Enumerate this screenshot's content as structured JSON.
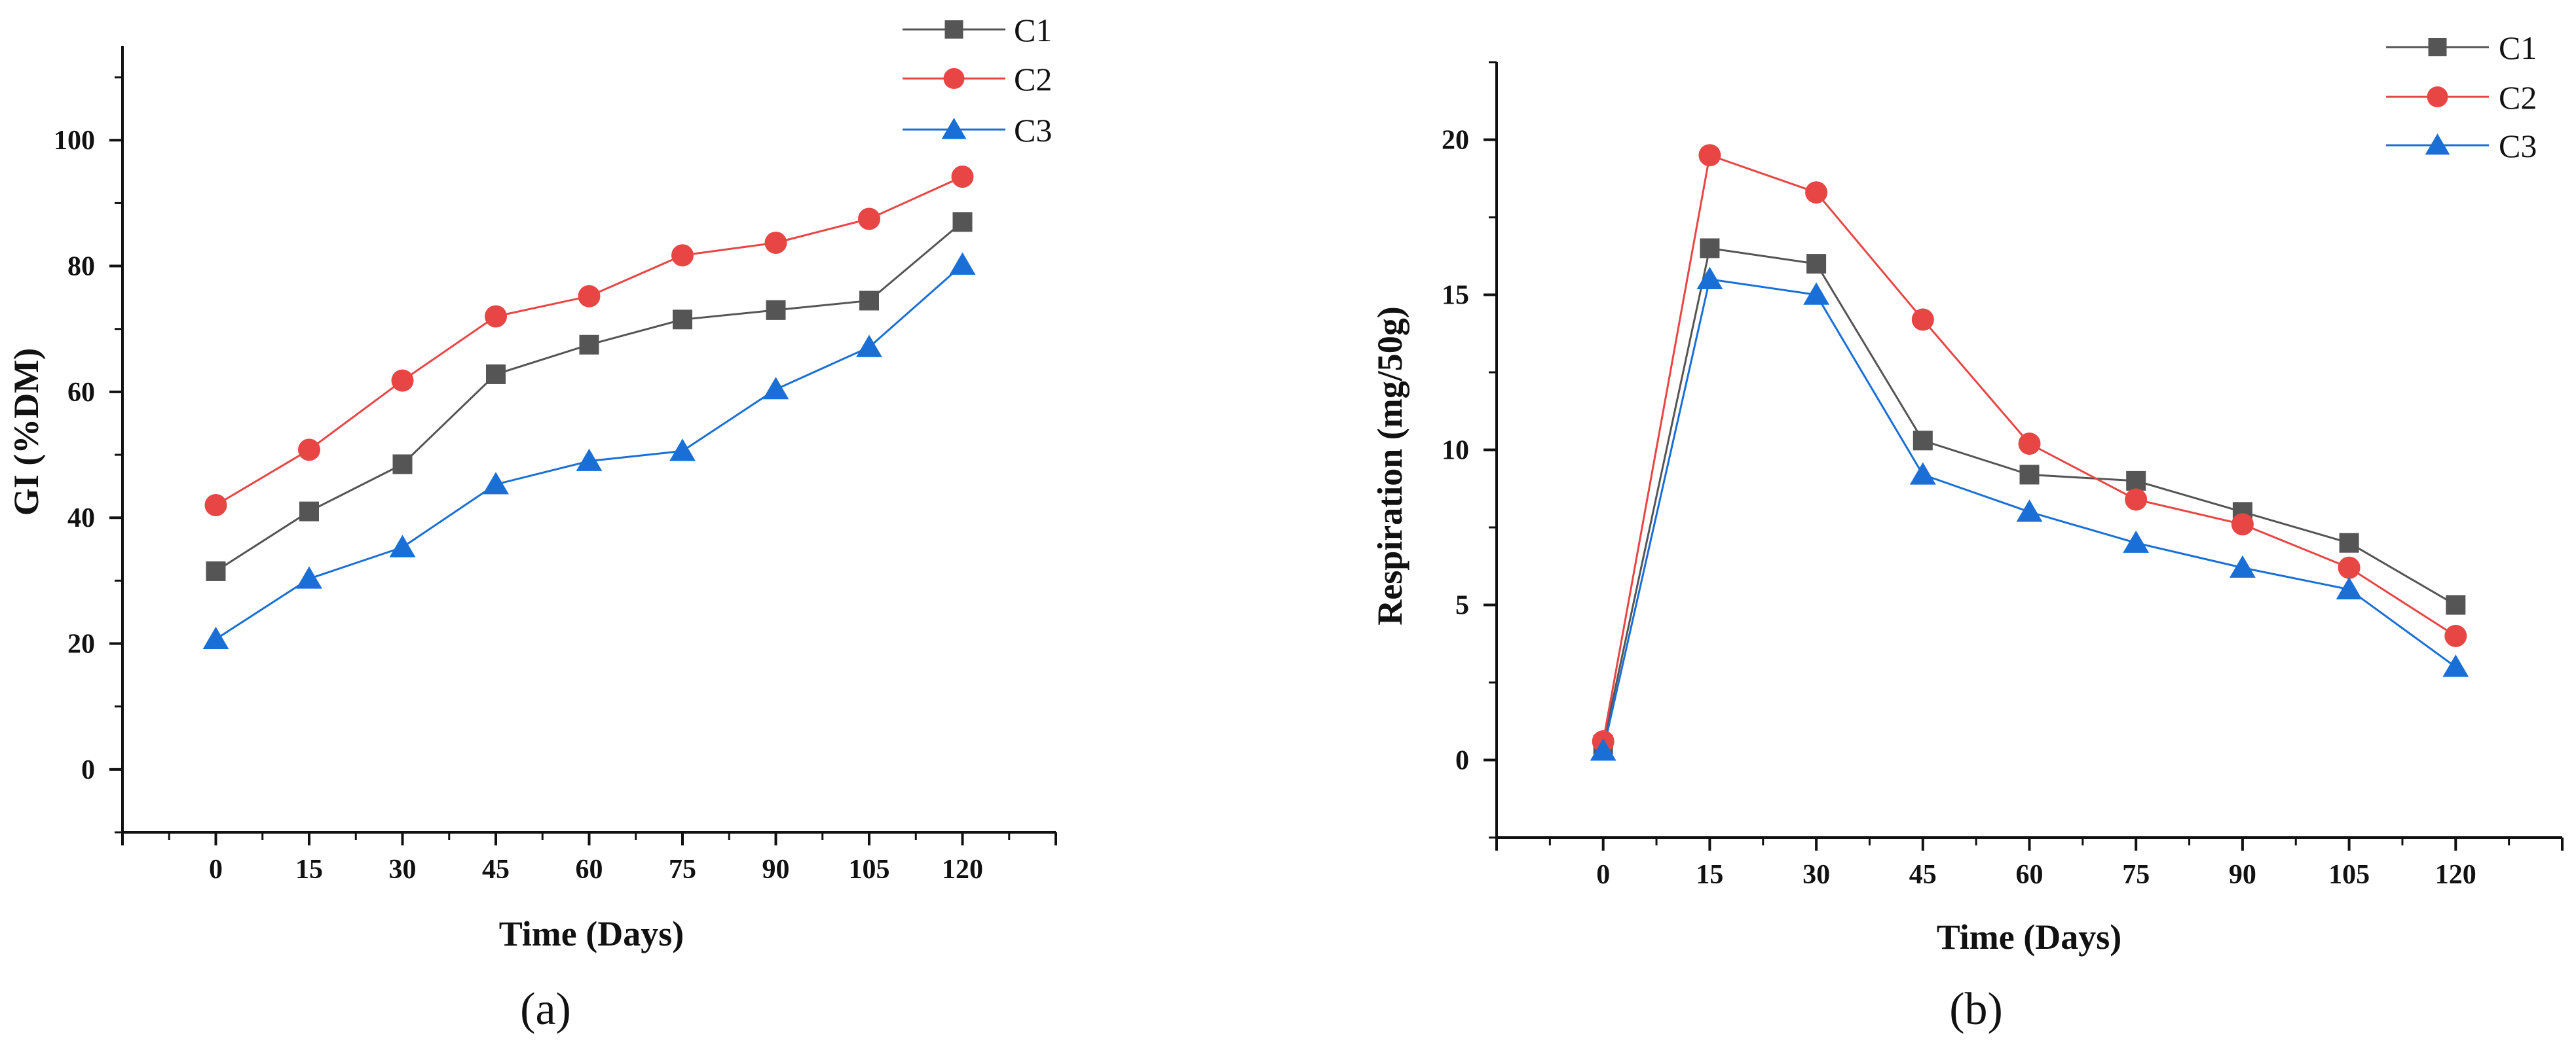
{
  "chart_data": [
    {
      "type": "line",
      "panel": "a",
      "caption": "(a)",
      "xlabel": "Time (Days)",
      "ylabel": "GI (%DM)",
      "x": [
        0,
        15,
        30,
        45,
        60,
        75,
        90,
        105,
        120
      ],
      "x_tick_labels": [
        "0",
        "15",
        "30",
        "45",
        "60",
        "75",
        "90",
        "105",
        "120"
      ],
      "ylim": [
        -10,
        115
      ],
      "xlim": [
        -15,
        135
      ],
      "y_ticks": [
        0,
        20,
        40,
        60,
        80,
        100
      ],
      "y_tick_labels": [
        "0",
        "20",
        "40",
        "60",
        "80",
        "100"
      ],
      "legend_position": "top-right",
      "series": [
        {
          "name": "C1",
          "color": "#555555",
          "marker": "square",
          "values": [
            31.5,
            41,
            48.5,
            62.8,
            67.5,
            71.5,
            73,
            74.5,
            87
          ]
        },
        {
          "name": "C2",
          "color": "#e84545",
          "marker": "circle",
          "values": [
            42,
            50.8,
            61.8,
            72,
            75.2,
            81.7,
            83.7,
            87.5,
            94.2
          ]
        },
        {
          "name": "C3",
          "color": "#1a6fd6",
          "marker": "triangle",
          "values": [
            20.7,
            30.3,
            35.3,
            45.3,
            49,
            50.6,
            60.4,
            67.1,
            80.2
          ]
        }
      ]
    },
    {
      "type": "line",
      "panel": "b",
      "caption": "(b)",
      "xlabel": "Time (Days)",
      "ylabel": "Respiration (mg/50g)",
      "x": [
        0,
        15,
        30,
        45,
        60,
        75,
        90,
        105,
        120
      ],
      "x_tick_labels": [
        "0",
        "15",
        "30",
        "45",
        "60",
        "75",
        "90",
        "105",
        "120"
      ],
      "ylim": [
        -2.5,
        22.5
      ],
      "xlim": [
        -15,
        135
      ],
      "y_ticks": [
        0,
        5,
        10,
        15,
        20
      ],
      "y_tick_labels": [
        "0",
        "5",
        "10",
        "15",
        "20"
      ],
      "legend_position": "top-right",
      "series": [
        {
          "name": "C1",
          "color": "#555555",
          "marker": "square",
          "values": [
            0.5,
            16.5,
            16,
            10.3,
            9.2,
            9,
            8,
            7,
            5
          ]
        },
        {
          "name": "C2",
          "color": "#e84545",
          "marker": "circle",
          "values": [
            0.6,
            19.5,
            18.3,
            14.2,
            10.2,
            8.4,
            7.6,
            6.2,
            4
          ]
        },
        {
          "name": "C3",
          "color": "#1a6fd6",
          "marker": "triangle",
          "values": [
            0.3,
            15.5,
            15,
            9.2,
            8,
            7,
            6.2,
            5.5,
            3
          ]
        }
      ]
    }
  ]
}
